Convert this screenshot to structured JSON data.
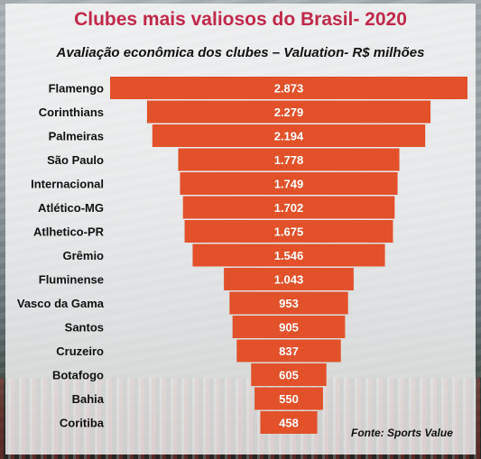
{
  "title": "Clubes mais valiosos do Brasil- 2020",
  "subtitle": "Avaliação econômica dos clubes – Valuation-  R$ milhões",
  "source": "Fonte: Sports Value",
  "colors": {
    "bar": "#e2512a",
    "title": "#c0294a"
  },
  "chart_data": {
    "type": "bar",
    "orientation": "horizontal-funnel",
    "categories": [
      "Flamengo",
      "Corinthians",
      "Palmeiras",
      "São Paulo",
      "Internacional",
      "Atlético-MG",
      "Atlhetico-PR",
      "Grêmio",
      "Fluminense",
      "Vasco da Gama",
      "Santos",
      "Cruzeiro",
      "Botafogo",
      "Bahia",
      "Coritiba"
    ],
    "values": [
      2873,
      2279,
      2194,
      1778,
      1749,
      1702,
      1675,
      1546,
      1043,
      953,
      905,
      837,
      605,
      550,
      458
    ],
    "labels": [
      "2.873",
      "2.279",
      "2.194",
      "1.778",
      "1.749",
      "1.702",
      "1.675",
      "1.546",
      "1.043",
      "953",
      "905",
      "837",
      "605",
      "550",
      "458"
    ],
    "grid": false,
    "legend": "none"
  }
}
